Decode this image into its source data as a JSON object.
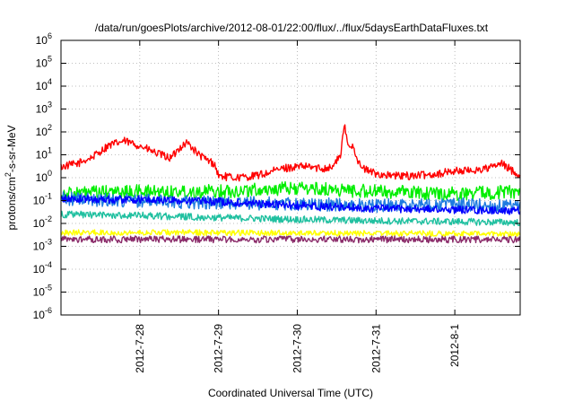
{
  "chart_data": {
    "type": "line",
    "title": "/data/run/goesPlots/archive/2012-08-01/22:00/flux/../flux/5daysEarthDataFluxes.txt",
    "xlabel": "Coordinated Universal Time (UTC)",
    "ylabel": "protons/cm²-s-sr-MeV",
    "ylabel_parts": {
      "base": "protons/cm",
      "sup": "2",
      "rest": "-s-sr-MeV"
    },
    "yscale": "log",
    "ylim": [
      1e-06,
      1000000.0
    ],
    "xlim": [
      0,
      5.83
    ],
    "yticks": [
      {
        "value": 1e-06,
        "base": "10",
        "exp": "-6"
      },
      {
        "value": 1e-05,
        "base": "10",
        "exp": "-5"
      },
      {
        "value": 0.0001,
        "base": "10",
        "exp": "-4"
      },
      {
        "value": 0.001,
        "base": "10",
        "exp": "-3"
      },
      {
        "value": 0.01,
        "base": "10",
        "exp": "-2"
      },
      {
        "value": 0.1,
        "base": "10",
        "exp": "-1"
      },
      {
        "value": 1.0,
        "base": "10",
        "exp": "0"
      },
      {
        "value": 10.0,
        "base": "10",
        "exp": "1"
      },
      {
        "value": 100.0,
        "base": "10",
        "exp": "2"
      },
      {
        "value": 1000.0,
        "base": "10",
        "exp": "3"
      },
      {
        "value": 10000.0,
        "base": "10",
        "exp": "4"
      },
      {
        "value": 100000.0,
        "base": "10",
        "exp": "5"
      },
      {
        "value": 1000000.0,
        "base": "10",
        "exp": "6"
      }
    ],
    "xticks": [
      {
        "value": 1,
        "label": "2012-7-28"
      },
      {
        "value": 2,
        "label": "2012-7-29"
      },
      {
        "value": 3,
        "label": "2012-7-30"
      },
      {
        "value": 4,
        "label": "2012-7-31"
      },
      {
        "value": 5,
        "label": "2012-8-1"
      }
    ],
    "grid": true,
    "series": [
      {
        "color": "#ff0000",
        "x": [
          0,
          0.2,
          0.4,
          0.6,
          0.8,
          1.0,
          1.2,
          1.4,
          1.5,
          1.6,
          1.75,
          1.85,
          1.95,
          2.0,
          2.2,
          2.4,
          2.6,
          2.8,
          3.0,
          3.15,
          3.3,
          3.45,
          3.55,
          3.6,
          3.65,
          3.7,
          3.8,
          3.9,
          4.0,
          4.2,
          4.4,
          4.6,
          4.8,
          5.0,
          5.2,
          5.4,
          5.6,
          5.83
        ],
        "values": [
          3,
          4,
          8,
          25,
          40,
          25,
          12,
          7,
          20,
          35,
          10,
          6,
          4,
          1.2,
          1.0,
          1.1,
          1.5,
          2.5,
          3,
          3,
          2.5,
          3,
          10,
          200,
          20,
          30,
          3,
          2,
          1.5,
          1.2,
          1.2,
          1.3,
          1.5,
          2,
          2,
          2.5,
          4,
          1.2
        ],
        "noise": 0.35
      },
      {
        "color": "#00ee00",
        "x": [
          0,
          1,
          2,
          3,
          4,
          5,
          5.83
        ],
        "values": [
          0.2,
          0.25,
          0.25,
          0.35,
          0.25,
          0.2,
          0.25
        ],
        "noise": 0.6
      },
      {
        "color": "#1e7be0",
        "x": [
          0,
          1,
          2,
          3,
          4,
          5,
          5.83
        ],
        "values": [
          0.12,
          0.1,
          0.08,
          0.07,
          0.06,
          0.07,
          0.05
        ],
        "noise": 0.6
      },
      {
        "color": "#0000ff",
        "x": [
          0,
          1,
          2,
          3,
          4,
          5,
          5.83
        ],
        "values": [
          0.12,
          0.11,
          0.09,
          0.06,
          0.045,
          0.04,
          0.035
        ],
        "noise": 0.35
      },
      {
        "color": "#20c0a0",
        "x": [
          0,
          1,
          2,
          3,
          4,
          5,
          5.83
        ],
        "values": [
          0.025,
          0.022,
          0.018,
          0.015,
          0.013,
          0.012,
          0.011
        ],
        "noise": 0.3
      },
      {
        "color": "#ffff00",
        "x": [
          0,
          1,
          2,
          3,
          4,
          5,
          5.83
        ],
        "values": [
          0.004,
          0.004,
          0.004,
          0.0038,
          0.0037,
          0.0036,
          0.0035
        ],
        "noise": 0.25
      },
      {
        "color": "#8b2c6a",
        "x": [
          0,
          1,
          2,
          3,
          4,
          5,
          5.83
        ],
        "values": [
          0.002,
          0.002,
          0.002,
          0.002,
          0.002,
          0.002,
          0.002
        ],
        "noise": 0.3
      }
    ]
  }
}
